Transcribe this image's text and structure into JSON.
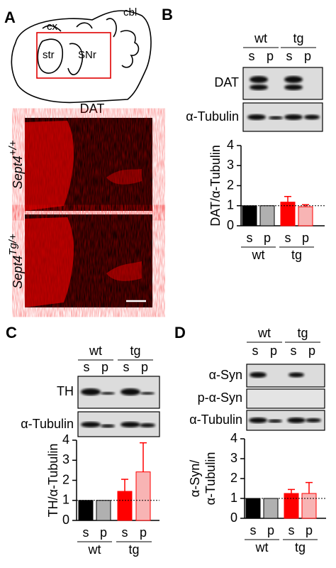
{
  "panel_a": {
    "label": "A",
    "regions": [
      "cx",
      "cbl",
      "str",
      "SNr"
    ],
    "stain": "DAT",
    "genotypes": [
      {
        "base": "Sept4",
        "sup": "+/+"
      },
      {
        "base": "Sept4",
        "sup": "Tg/+"
      }
    ]
  },
  "panel_b": {
    "label": "B",
    "groups": [
      "wt",
      "tg"
    ],
    "lanes": [
      "s",
      "p",
      "s",
      "p"
    ],
    "blots": [
      "DAT",
      "α-Tubulin"
    ]
  },
  "panel_c": {
    "label": "C",
    "groups": [
      "wt",
      "tg"
    ],
    "lanes": [
      "s",
      "p",
      "s",
      "p"
    ],
    "blots": [
      "TH",
      "α-Tubulin"
    ]
  },
  "panel_d": {
    "label": "D",
    "groups": [
      "wt",
      "tg"
    ],
    "lanes": [
      "s",
      "p",
      "s",
      "p"
    ],
    "blots": [
      "α-Syn",
      "p-α-Syn",
      "α-Tubulin"
    ]
  },
  "chart_data": [
    {
      "type": "bar",
      "y_label": [
        "DAT/α-Tubulin"
      ],
      "categories": [
        "s",
        "p",
        "s",
        "p"
      ],
      "groups": [
        "wt",
        "tg"
      ],
      "values": [
        1,
        1,
        1.18,
        0.95
      ],
      "errors": [
        0,
        0,
        0.28,
        0.1
      ],
      "colors": [
        "#000000",
        "#b0b0b0",
        "#ff0000",
        "#f8b4b4"
      ],
      "ylim": [
        0,
        4
      ],
      "yticks": [
        0,
        1,
        2,
        3,
        4
      ],
      "reference_line": 1
    },
    {
      "type": "bar",
      "y_label": [
        "TH/α-Tubulin"
      ],
      "categories": [
        "s",
        "p",
        "s",
        "p"
      ],
      "groups": [
        "wt",
        "tg"
      ],
      "values": [
        1,
        1,
        1.45,
        2.42
      ],
      "errors": [
        0,
        0,
        0.6,
        1.45
      ],
      "colors": [
        "#000000",
        "#b0b0b0",
        "#ff0000",
        "#f8b4b4"
      ],
      "ylim": [
        0,
        4
      ],
      "yticks": [
        0,
        1,
        2,
        3,
        4
      ],
      "reference_line": 1
    },
    {
      "type": "bar",
      "y_label": [
        "α-Syn/",
        "α-Tubulin"
      ],
      "categories": [
        "s",
        "p",
        "s",
        "p"
      ],
      "groups": [
        "wt",
        "tg"
      ],
      "values": [
        1,
        1,
        1.25,
        1.25
      ],
      "errors": [
        0,
        0,
        0.2,
        0.55
      ],
      "colors": [
        "#000000",
        "#b0b0b0",
        "#ff0000",
        "#f8b4b4"
      ],
      "ylim": [
        0,
        4
      ],
      "yticks": [
        0,
        1,
        2,
        3,
        4
      ],
      "reference_line": 1
    }
  ]
}
